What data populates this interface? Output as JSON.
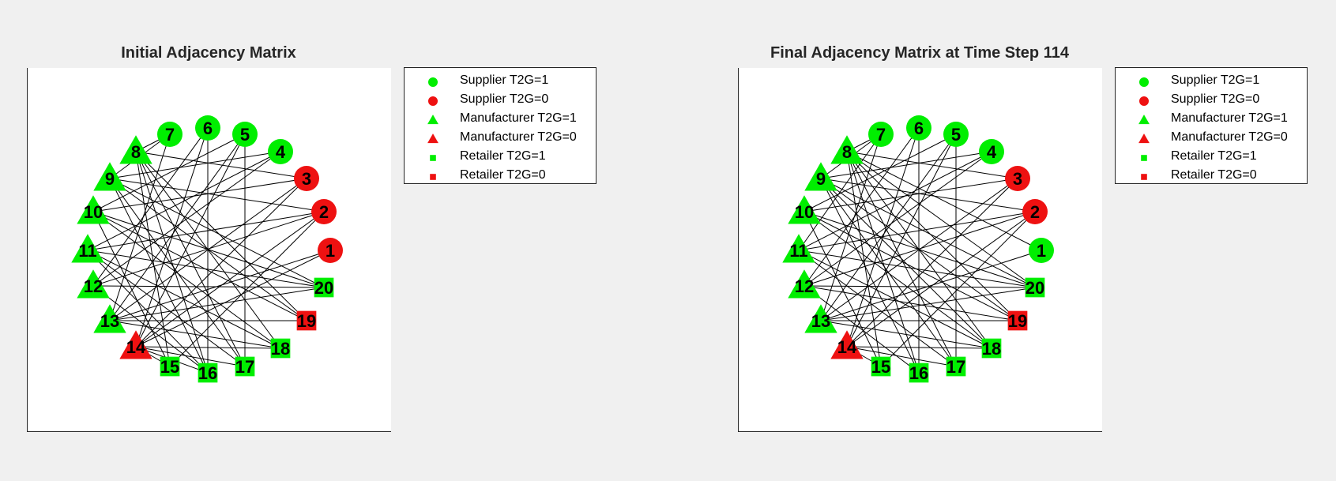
{
  "colors": {
    "green": "#00ee00",
    "red": "#ee1111",
    "edge": "#000000",
    "background": "#f0f0f0"
  },
  "legend": [
    {
      "label": "Supplier T2G=1",
      "shape": "circle",
      "color": "green"
    },
    {
      "label": "Supplier T2G=0",
      "shape": "circle",
      "color": "red"
    },
    {
      "label": "Manufacturer T2G=1",
      "shape": "triangle",
      "color": "green"
    },
    {
      "label": "Manufacturer T2G=0",
      "shape": "triangle",
      "color": "red"
    },
    {
      "label": "Retailer T2G=1",
      "shape": "square",
      "color": "green"
    },
    {
      "label": "Retailer T2G=0",
      "shape": "square",
      "color": "red"
    }
  ],
  "graphs": [
    {
      "title": "Initial Adjacency Matrix",
      "nodes": [
        {
          "id": "1",
          "type": "Supplier",
          "t2g": 0
        },
        {
          "id": "2",
          "type": "Supplier",
          "t2g": 0
        },
        {
          "id": "3",
          "type": "Supplier",
          "t2g": 0
        },
        {
          "id": "4",
          "type": "Supplier",
          "t2g": 1
        },
        {
          "id": "5",
          "type": "Supplier",
          "t2g": 1
        },
        {
          "id": "6",
          "type": "Supplier",
          "t2g": 1
        },
        {
          "id": "7",
          "type": "Supplier",
          "t2g": 1
        },
        {
          "id": "8",
          "type": "Manufacturer",
          "t2g": 1
        },
        {
          "id": "9",
          "type": "Manufacturer",
          "t2g": 1
        },
        {
          "id": "10",
          "type": "Manufacturer",
          "t2g": 1
        },
        {
          "id": "11",
          "type": "Manufacturer",
          "t2g": 1
        },
        {
          "id": "12",
          "type": "Manufacturer",
          "t2g": 1
        },
        {
          "id": "13",
          "type": "Manufacturer",
          "t2g": 1
        },
        {
          "id": "14",
          "type": "Manufacturer",
          "t2g": 0
        },
        {
          "id": "15",
          "type": "Retailer",
          "t2g": 1
        },
        {
          "id": "16",
          "type": "Retailer",
          "t2g": 1
        },
        {
          "id": "17",
          "type": "Retailer",
          "t2g": 1
        },
        {
          "id": "18",
          "type": "Retailer",
          "t2g": 1
        },
        {
          "id": "19",
          "type": "Retailer",
          "t2g": 0
        },
        {
          "id": "20",
          "type": "Retailer",
          "t2g": 1
        }
      ],
      "edges": [
        [
          "7",
          "8"
        ],
        [
          "7",
          "13"
        ],
        [
          "7",
          "9"
        ],
        [
          "6",
          "14"
        ],
        [
          "6",
          "12"
        ],
        [
          "6",
          "16"
        ],
        [
          "5",
          "10"
        ],
        [
          "5",
          "13"
        ],
        [
          "5",
          "17"
        ],
        [
          "5",
          "14"
        ],
        [
          "4",
          "9"
        ],
        [
          "4",
          "11"
        ],
        [
          "4",
          "12"
        ],
        [
          "3",
          "8"
        ],
        [
          "3",
          "13"
        ],
        [
          "3",
          "14"
        ],
        [
          "3",
          "10"
        ],
        [
          "2",
          "9"
        ],
        [
          "2",
          "12"
        ],
        [
          "2",
          "14"
        ],
        [
          "2",
          "15"
        ],
        [
          "2",
          "11"
        ],
        [
          "1",
          "13"
        ],
        [
          "1",
          "14"
        ],
        [
          "8",
          "16"
        ],
        [
          "8",
          "17"
        ],
        [
          "8",
          "18"
        ],
        [
          "8",
          "15"
        ],
        [
          "8",
          "19"
        ],
        [
          "9",
          "19"
        ],
        [
          "9",
          "17"
        ],
        [
          "9",
          "20"
        ],
        [
          "9",
          "16"
        ],
        [
          "10",
          "18"
        ],
        [
          "10",
          "20"
        ],
        [
          "10",
          "15"
        ],
        [
          "11",
          "20"
        ],
        [
          "11",
          "17"
        ],
        [
          "11",
          "18"
        ],
        [
          "12",
          "20"
        ],
        [
          "12",
          "16"
        ],
        [
          "13",
          "19"
        ],
        [
          "13",
          "18"
        ],
        [
          "14",
          "18"
        ],
        [
          "14",
          "17"
        ],
        [
          "14",
          "16"
        ],
        [
          "14",
          "15"
        ],
        [
          "10",
          "19"
        ],
        [
          "13",
          "20"
        ],
        [
          "11",
          "16"
        ]
      ]
    },
    {
      "title": "Final Adjacency Matrix at Time Step 114",
      "nodes": [
        {
          "id": "1",
          "type": "Supplier",
          "t2g": 1
        },
        {
          "id": "2",
          "type": "Supplier",
          "t2g": 0
        },
        {
          "id": "3",
          "type": "Supplier",
          "t2g": 0
        },
        {
          "id": "4",
          "type": "Supplier",
          "t2g": 1
        },
        {
          "id": "5",
          "type": "Supplier",
          "t2g": 1
        },
        {
          "id": "6",
          "type": "Supplier",
          "t2g": 1
        },
        {
          "id": "7",
          "type": "Supplier",
          "t2g": 1
        },
        {
          "id": "8",
          "type": "Manufacturer",
          "t2g": 1
        },
        {
          "id": "9",
          "type": "Manufacturer",
          "t2g": 1
        },
        {
          "id": "10",
          "type": "Manufacturer",
          "t2g": 1
        },
        {
          "id": "11",
          "type": "Manufacturer",
          "t2g": 1
        },
        {
          "id": "12",
          "type": "Manufacturer",
          "t2g": 1
        },
        {
          "id": "13",
          "type": "Manufacturer",
          "t2g": 1
        },
        {
          "id": "14",
          "type": "Manufacturer",
          "t2g": 0
        },
        {
          "id": "15",
          "type": "Retailer",
          "t2g": 1
        },
        {
          "id": "16",
          "type": "Retailer",
          "t2g": 1
        },
        {
          "id": "17",
          "type": "Retailer",
          "t2g": 1
        },
        {
          "id": "18",
          "type": "Retailer",
          "t2g": 1
        },
        {
          "id": "19",
          "type": "Retailer",
          "t2g": 0
        },
        {
          "id": "20",
          "type": "Retailer",
          "t2g": 1
        }
      ],
      "edges": [
        [
          "7",
          "8"
        ],
        [
          "7",
          "13"
        ],
        [
          "7",
          "9"
        ],
        [
          "7",
          "11"
        ],
        [
          "6",
          "14"
        ],
        [
          "6",
          "12"
        ],
        [
          "6",
          "16"
        ],
        [
          "5",
          "10"
        ],
        [
          "5",
          "13"
        ],
        [
          "5",
          "17"
        ],
        [
          "5",
          "14"
        ],
        [
          "4",
          "9"
        ],
        [
          "4",
          "11"
        ],
        [
          "4",
          "12"
        ],
        [
          "3",
          "8"
        ],
        [
          "3",
          "13"
        ],
        [
          "3",
          "14"
        ],
        [
          "3",
          "10"
        ],
        [
          "2",
          "9"
        ],
        [
          "2",
          "12"
        ],
        [
          "2",
          "14"
        ],
        [
          "2",
          "15"
        ],
        [
          "2",
          "11"
        ],
        [
          "1",
          "8"
        ],
        [
          "1",
          "13"
        ],
        [
          "8",
          "16"
        ],
        [
          "8",
          "17"
        ],
        [
          "8",
          "18"
        ],
        [
          "8",
          "15"
        ],
        [
          "8",
          "19"
        ],
        [
          "8",
          "20"
        ],
        [
          "9",
          "19"
        ],
        [
          "9",
          "17"
        ],
        [
          "9",
          "20"
        ],
        [
          "9",
          "16"
        ],
        [
          "10",
          "18"
        ],
        [
          "10",
          "20"
        ],
        [
          "10",
          "15"
        ],
        [
          "11",
          "20"
        ],
        [
          "11",
          "17"
        ],
        [
          "11",
          "18"
        ],
        [
          "12",
          "20"
        ],
        [
          "12",
          "16"
        ],
        [
          "13",
          "19"
        ],
        [
          "13",
          "18"
        ],
        [
          "14",
          "18"
        ],
        [
          "14",
          "17"
        ],
        [
          "14",
          "15"
        ],
        [
          "10",
          "19"
        ],
        [
          "13",
          "20"
        ],
        [
          "12",
          "19"
        ],
        [
          "9",
          "18"
        ]
      ]
    }
  ]
}
